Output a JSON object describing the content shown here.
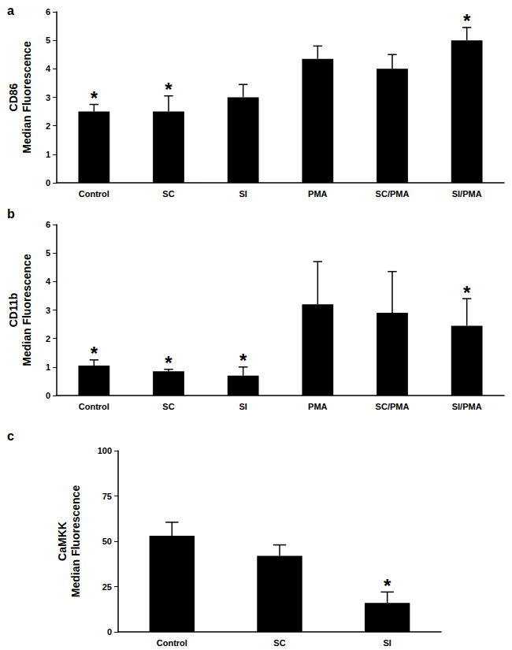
{
  "chart_data": [
    {
      "type": "bar",
      "title": "a",
      "ylabel": "CD86\nMedian Fluorescence",
      "categories": [
        "Control",
        "SC",
        "SI",
        "PMA",
        "SC/PMA",
        "SI/PMA"
      ],
      "values": [
        2.5,
        2.5,
        3.0,
        4.35,
        4.0,
        5.0
      ],
      "errors": [
        0.25,
        0.55,
        0.45,
        0.45,
        0.5,
        0.45
      ],
      "annotations": [
        {
          "category": "Control",
          "text": "*"
        },
        {
          "category": "SC",
          "text": "*"
        },
        {
          "category": "SI/PMA",
          "text": "*"
        }
      ],
      "color": "#000000",
      "ylim": [
        0,
        6
      ],
      "yticks": [
        0,
        1,
        2,
        3,
        4,
        5,
        6
      ],
      "grid": false
    },
    {
      "type": "bar",
      "title": "b",
      "ylabel": "CD11b\nMedian Fluorescence",
      "categories": [
        "Control",
        "SC",
        "SI",
        "PMA",
        "SC/PMA",
        "SI/PMA"
      ],
      "values": [
        1.05,
        0.85,
        0.7,
        3.2,
        2.9,
        2.45
      ],
      "errors": [
        0.2,
        0.07,
        0.3,
        1.5,
        1.45,
        0.95
      ],
      "annotations": [
        {
          "category": "Control",
          "text": "*"
        },
        {
          "category": "SC",
          "text": "*"
        },
        {
          "category": "SI",
          "text": "*"
        },
        {
          "category": "SI/PMA",
          "text": "*"
        }
      ],
      "color": "#000000",
      "ylim": [
        0,
        6
      ],
      "yticks": [
        0,
        1,
        2,
        3,
        4,
        5,
        6
      ],
      "grid": false
    },
    {
      "type": "bar",
      "title": "c",
      "ylabel": "CaMKK\nMedian Fluorescence",
      "categories": [
        "Control",
        "SC",
        "SI"
      ],
      "values": [
        53,
        42,
        16
      ],
      "errors": [
        7.5,
        6,
        6
      ],
      "annotations": [
        {
          "category": "SI",
          "text": "*"
        }
      ],
      "color": "#000000",
      "ylim": [
        0,
        100
      ],
      "yticks": [
        0,
        25,
        50,
        75,
        100
      ],
      "grid": false
    }
  ]
}
